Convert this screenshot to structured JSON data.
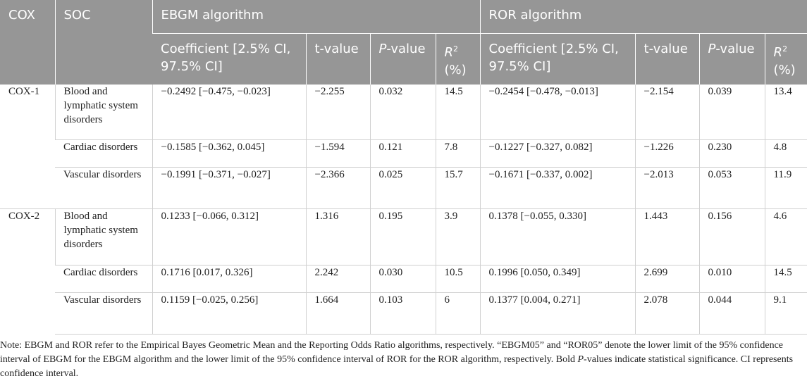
{
  "headers": {
    "cox": "COX",
    "soc": "SOC",
    "ebgm_group": "EBGM algorithm",
    "ror_group": "ROR algorithm",
    "coefficient": "Coefficient [2.5% CI, 97.5% CI]",
    "t_value": "t-value",
    "p_letter": "P",
    "p_rest": "-value",
    "r2_letter": "R",
    "r2_sup": "2",
    "r2_unit": "(%)"
  },
  "groups": [
    {
      "cox": "COX-1",
      "rows": [
        {
          "soc": "Blood and lymphatic system disorders",
          "ebgm_coef": "−0.2492 [−0.475, −0.023]",
          "ebgm_t": "−2.255",
          "ebgm_p": "0.032",
          "ebgm_p_bold": true,
          "ebgm_r2": "14.5",
          "ror_coef": "−0.2454 [−0.478, −0.013]",
          "ror_t": "−2.154",
          "ror_p": "0.039",
          "ror_p_bold": true,
          "ror_r2": "13.4"
        },
        {
          "soc": "Cardiac disorders",
          "ebgm_coef": "−0.1585 [−0.362, 0.045]",
          "ebgm_t": "−1.594",
          "ebgm_p": "0.121",
          "ebgm_p_bold": false,
          "ebgm_r2": "7.8",
          "ror_coef": "−0.1227 [−0.327, 0.082]",
          "ror_t": "−1.226",
          "ror_p": "0.230",
          "ror_p_bold": false,
          "ror_r2": "4.8"
        },
        {
          "soc": "Vascular disorders",
          "ebgm_coef": "−0.1991 [−0.371, −0.027]",
          "ebgm_t": "−2.366",
          "ebgm_p": "0.025",
          "ebgm_p_bold": true,
          "ebgm_r2": "15.7",
          "ror_coef": "−0.1671 [−0.337, 0.002]",
          "ror_t": "−2.013",
          "ror_p": "0.053",
          "ror_p_bold": false,
          "ror_r2": "11.9"
        }
      ]
    },
    {
      "cox": "COX-2",
      "rows": [
        {
          "soc": "Blood and lymphatic system disorders",
          "ebgm_coef": "0.1233 [−0.066, 0.312]",
          "ebgm_t": "1.316",
          "ebgm_p": "0.195",
          "ebgm_p_bold": false,
          "ebgm_r2": "3.9",
          "ror_coef": "0.1378 [−0.055, 0.330]",
          "ror_t": "1.443",
          "ror_p": "0.156",
          "ror_p_bold": false,
          "ror_r2": "4.6"
        },
        {
          "soc": "Cardiac disorders",
          "ebgm_coef": "0.1716 [0.017, 0.326]",
          "ebgm_t": "2.242",
          "ebgm_p": "0.030",
          "ebgm_p_bold": true,
          "ebgm_r2": "10.5",
          "ror_coef": "0.1996 [0.050, 0.349]",
          "ror_t": "2.699",
          "ror_p": "0.010",
          "ror_p_bold": true,
          "ror_r2": "14.5"
        },
        {
          "soc": "Vascular disorders",
          "ebgm_coef": "0.1159 [−0.025, 0.256]",
          "ebgm_t": "1.664",
          "ebgm_p": "0.103",
          "ebgm_p_bold": false,
          "ebgm_r2": "6",
          "ror_coef": "0.1377 [0.004, 0.271]",
          "ror_t": "2.078",
          "ror_p": "0.044",
          "ror_p_bold": true,
          "ror_r2": "9.1"
        }
      ]
    }
  ],
  "note": {
    "part1": "Note: EBGM and ROR refer to the Empirical Bayes Geometric Mean and the Reporting Odds Ratio algorithms, respectively. “EBGM05” and “ROR05” denote the lower limit of the 95% confidence interval of EBGM for the EBGM algorithm and the lower limit of the 95% confidence interval of ROR for the ROR algorithm, respectively. Bold ",
    "p_letter": "P",
    "part2": "-values indicate statistical significance. CI represents confidence interval."
  }
}
